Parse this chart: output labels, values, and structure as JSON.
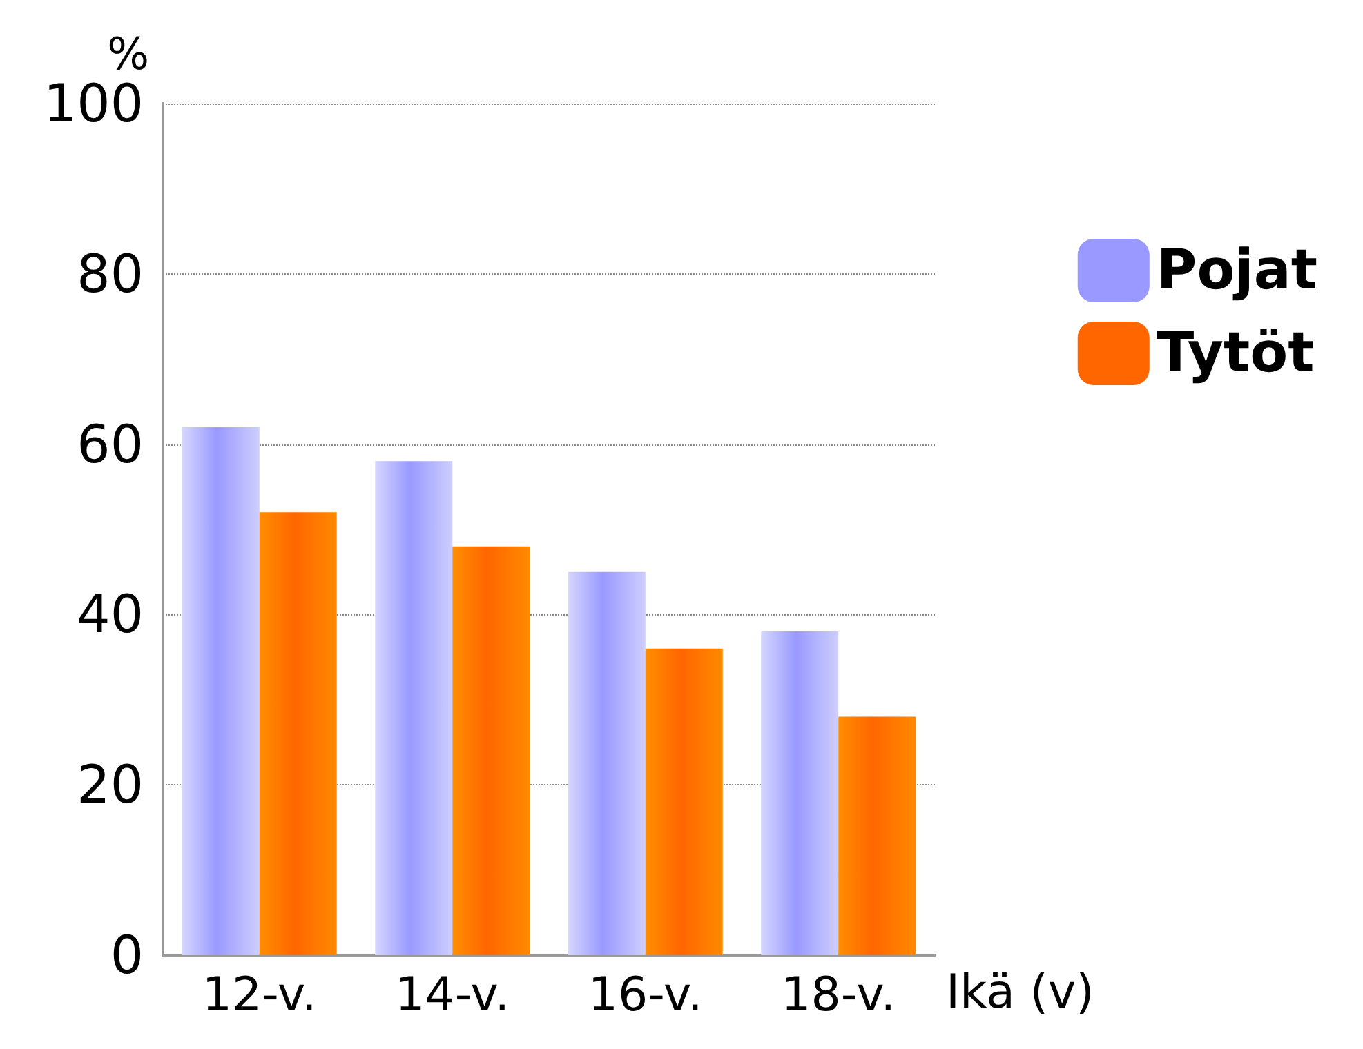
{
  "chart_data": {
    "type": "bar",
    "xlabel": "Ikä (v)",
    "ylabel": "%",
    "categories": [
      "12-v.",
      "14-v.",
      "16-v.",
      "18-v."
    ],
    "series": [
      {
        "name": "Pojat",
        "color": "#9999ff",
        "values": [
          62,
          58,
          45,
          38
        ]
      },
      {
        "name": "Tytöt",
        "color": "#ff6600",
        "values": [
          52,
          48,
          36,
          28
        ]
      }
    ],
    "ylim": [
      0,
      100
    ],
    "yticks": [
      0,
      20,
      40,
      60,
      80,
      100
    ],
    "grid": "y",
    "legend": "right"
  }
}
